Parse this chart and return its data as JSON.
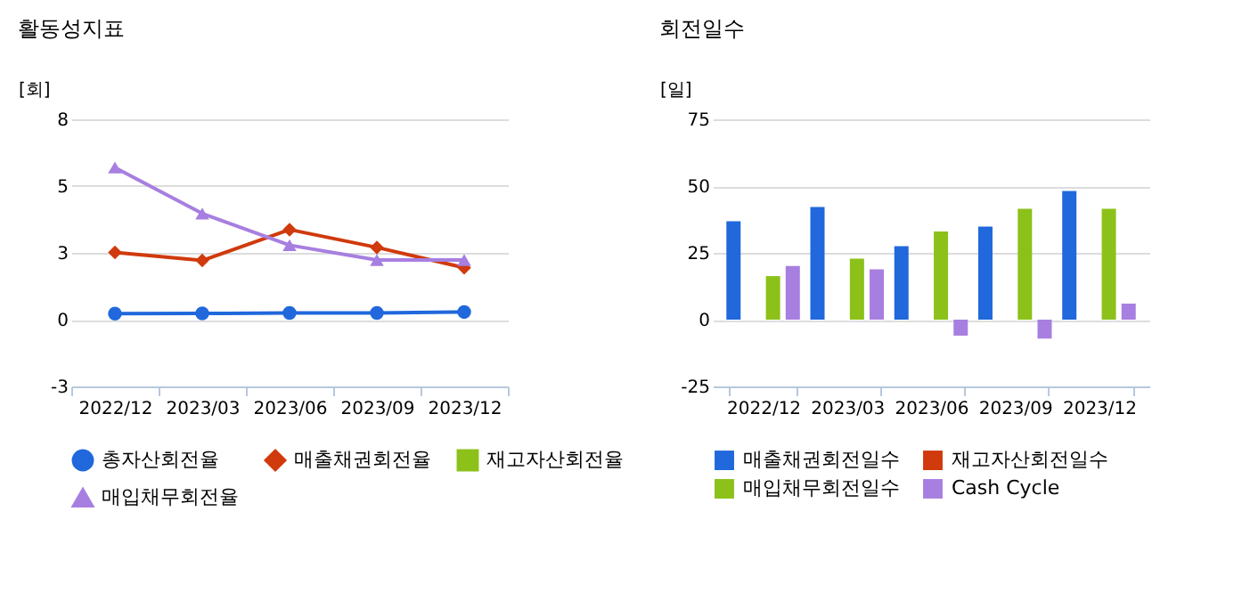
{
  "chart_data": [
    {
      "type": "line",
      "title": "활동성지표",
      "ylabel": "[회]",
      "categories": [
        "2022/12",
        "2023/03",
        "2023/06",
        "2023/09",
        "2023/12"
      ],
      "ylim": [
        -2.7,
        8.1
      ],
      "yticks": [
        {
          "value": -2.7,
          "label": "-3"
        },
        {
          "value": 0,
          "label": "0"
        },
        {
          "value": 2.7,
          "label": "3"
        },
        {
          "value": 5.4,
          "label": "5"
        },
        {
          "value": 8.1,
          "label": "8"
        }
      ],
      "grid": "y",
      "legend": "bottom",
      "series": [
        {
          "name": "총자산회전율",
          "color": "#2068dc",
          "marker": "circle",
          "values": [
            0.24,
            0.25,
            0.27,
            0.27,
            0.31
          ]
        },
        {
          "name": "매출채권회전율",
          "color": "#d03a0c",
          "marker": "diamond",
          "values": [
            2.72,
            2.39,
            3.64,
            2.92,
            2.1
          ]
        },
        {
          "name": "재고자산회전율",
          "color": "#8cc11a",
          "marker": "square",
          "values": [
            null,
            null,
            null,
            null,
            null
          ]
        },
        {
          "name": "매입채무회전율",
          "color": "#a77fe0",
          "marker": "triangle",
          "values": [
            6.15,
            4.29,
            3.01,
            2.41,
            2.41
          ]
        }
      ]
    },
    {
      "type": "bar",
      "title": "회전일수",
      "ylabel": "[일]",
      "categories": [
        "2022/12",
        "2023/03",
        "2023/06",
        "2023/09",
        "2023/12"
      ],
      "ylim": [
        -25,
        75
      ],
      "yticks": [
        -25,
        0,
        25,
        50,
        75
      ],
      "grid": "y",
      "legend": "bottom",
      "series": [
        {
          "name": "매출채권회전일수",
          "color": "#2068dc",
          "values": [
            36.8,
            42.2,
            27.5,
            34.8,
            48.2
          ]
        },
        {
          "name": "재고자산회전일수",
          "color": "#d03a0c",
          "values": [
            null,
            null,
            null,
            null,
            null
          ]
        },
        {
          "name": "매입채무회전일수",
          "color": "#8cc11a",
          "values": [
            16.3,
            22.8,
            33.0,
            41.5,
            41.5
          ]
        },
        {
          "name": "Cash Cycle",
          "color": "#a77fe0",
          "values": [
            20.1,
            18.8,
            -6.0,
            -7.1,
            6.0
          ]
        }
      ]
    }
  ]
}
